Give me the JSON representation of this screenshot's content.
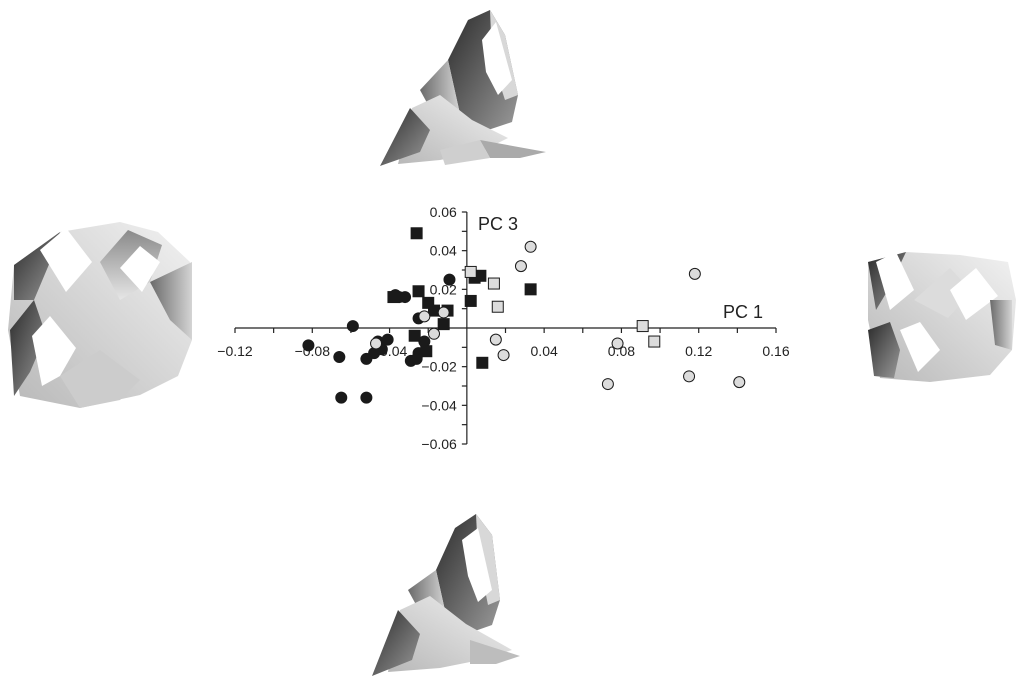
{
  "chart_data": {
    "type": "scatter",
    "xlabel": "PC 1",
    "ylabel": "PC 3",
    "xlim": [
      -0.12,
      0.16
    ],
    "ylim": [
      -0.06,
      0.06
    ],
    "x_ticks": [
      -0.12,
      -0.08,
      -0.04,
      0.04,
      0.08,
      0.12,
      0.16
    ],
    "y_ticks": [
      -0.06,
      -0.04,
      -0.02,
      0.02,
      0.04,
      0.06
    ],
    "x_tick_labels": [
      "−0.12",
      "−0.08",
      "−0.04",
      "0.04",
      "0.08",
      "0.12",
      "0.16"
    ],
    "y_tick_labels": [
      "−0.06",
      "−0.04",
      "−0.02",
      "0.02",
      "0.04",
      "0.06"
    ],
    "grid": false,
    "legend": "none",
    "series": [
      {
        "marker": "circle",
        "fill": "#1a1a1a",
        "points": [
          [
            -0.082,
            -0.009
          ],
          [
            -0.066,
            -0.015
          ],
          [
            -0.059,
            0.001
          ],
          [
            -0.065,
            -0.036
          ],
          [
            -0.052,
            -0.036
          ],
          [
            -0.048,
            -0.013
          ],
          [
            -0.052,
            -0.016
          ],
          [
            -0.046,
            -0.007
          ],
          [
            -0.044,
            -0.011
          ],
          [
            -0.041,
            -0.006
          ],
          [
            -0.032,
            0.016
          ],
          [
            -0.037,
            0.017
          ],
          [
            -0.035,
            0.016
          ],
          [
            -0.025,
            0.005
          ],
          [
            -0.022,
            -0.007
          ],
          [
            -0.025,
            -0.013
          ],
          [
            -0.029,
            -0.017
          ],
          [
            -0.026,
            -0.016
          ],
          [
            -0.009,
            0.025
          ]
        ]
      },
      {
        "marker": "square",
        "fill": "#1a1a1a",
        "points": [
          [
            -0.026,
            0.049
          ],
          [
            -0.038,
            0.016
          ],
          [
            -0.025,
            0.019
          ],
          [
            -0.02,
            0.013
          ],
          [
            -0.017,
            0.009
          ],
          [
            -0.012,
            0.002
          ],
          [
            -0.01,
            0.009
          ],
          [
            -0.027,
            -0.004
          ],
          [
            -0.021,
            -0.012
          ],
          [
            0.002,
            0.014
          ],
          [
            0.004,
            0.026
          ],
          [
            0.007,
            0.027
          ],
          [
            0.033,
            0.02
          ],
          [
            0.008,
            -0.018
          ]
        ]
      },
      {
        "marker": "circle",
        "fill": "#dcdcdc",
        "points": [
          [
            -0.047,
            -0.008
          ],
          [
            -0.022,
            0.006
          ],
          [
            -0.017,
            -0.003
          ],
          [
            -0.012,
            0.008
          ],
          [
            0.015,
            -0.006
          ],
          [
            0.019,
            -0.014
          ],
          [
            0.028,
            0.032
          ],
          [
            0.033,
            0.042
          ],
          [
            0.073,
            -0.029
          ],
          [
            0.078,
            -0.008
          ],
          [
            0.118,
            0.028
          ],
          [
            0.115,
            -0.025
          ],
          [
            0.141,
            -0.028
          ]
        ]
      },
      {
        "marker": "square",
        "fill": "#dcdcdc",
        "points": [
          [
            0.002,
            0.029
          ],
          [
            0.014,
            0.023
          ],
          [
            0.016,
            0.011
          ],
          [
            0.091,
            0.001
          ],
          [
            0.097,
            -0.007
          ]
        ]
      }
    ]
  },
  "shapes": [
    {
      "position": "top",
      "icon": "pc3-positive-shape-icon"
    },
    {
      "position": "left",
      "icon": "pc1-negative-shape-icon"
    },
    {
      "position": "right",
      "icon": "pc1-positive-shape-icon"
    },
    {
      "position": "bottom",
      "icon": "pc3-negative-shape-icon"
    }
  ]
}
